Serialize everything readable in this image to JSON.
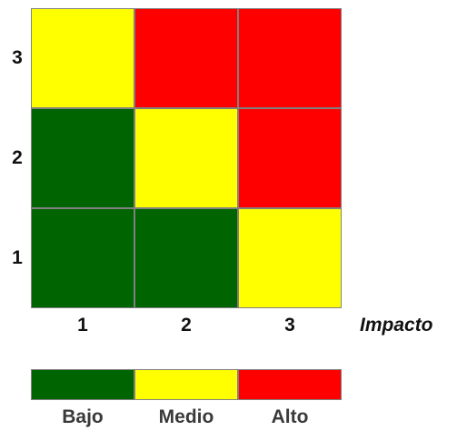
{
  "chart_data": {
    "type": "heatmap",
    "title": "",
    "xlabel": "Impacto",
    "ylabel": "",
    "x_categories": [
      "1",
      "2",
      "3"
    ],
    "y_categories": [
      "1",
      "2",
      "3"
    ],
    "grid_rows_top_to_bottom": [
      {
        "y": "3",
        "levels": [
          "Medio",
          "Alto",
          "Alto"
        ]
      },
      {
        "y": "2",
        "levels": [
          "Bajo",
          "Medio",
          "Alto"
        ]
      },
      {
        "y": "1",
        "levels": [
          "Bajo",
          "Bajo",
          "Medio"
        ]
      }
    ],
    "legend": {
      "placement": "bottom",
      "entries": [
        {
          "label": "Bajo",
          "color": "#006400"
        },
        {
          "label": "Medio",
          "color": "#ffff00"
        },
        {
          "label": "Alto",
          "color": "#ff0000"
        }
      ]
    }
  }
}
